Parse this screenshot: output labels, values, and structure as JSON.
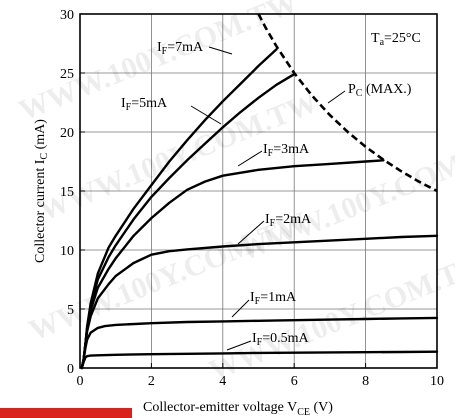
{
  "watermark": "WWW.100Y.COM.TW",
  "chart_data": {
    "type": "line",
    "xlabel": "Collector-emitter voltage V",
    "xlabel_sub": "CE",
    "xlabel_unit": " (V)",
    "ylabel": "Collector current I",
    "ylabel_sub": "C",
    "ylabel_unit": " (mA)",
    "xlim": [
      0,
      10
    ],
    "ylim": [
      0,
      30
    ],
    "xticks": [
      0,
      2,
      4,
      6,
      8,
      10
    ],
    "yticks": [
      0,
      5,
      10,
      15,
      20,
      25,
      30
    ],
    "grid": true,
    "condition": {
      "main": "T",
      "sub": "a",
      "rest": "=25°C"
    },
    "series": [
      {
        "name": "IF=7mA",
        "label_main": "I",
        "label_sub": "F",
        "label_rest": "=7mA",
        "x": [
          0.05,
          0.1,
          0.15,
          0.2,
          0.3,
          0.5,
          0.8,
          1.0,
          1.5,
          2.0,
          2.5,
          3.0,
          3.5,
          4.0,
          4.5,
          5.0,
          5.5
        ],
        "y": [
          0,
          0.7,
          2,
          3.5,
          5.5,
          8,
          10.2,
          11.2,
          13.5,
          15.5,
          17.5,
          19.3,
          21,
          22.6,
          24.1,
          25.6,
          27
        ]
      },
      {
        "name": "IF=5mA",
        "label_main": "I",
        "label_sub": "F",
        "label_rest": "=5mA",
        "x": [
          0.05,
          0.1,
          0.15,
          0.2,
          0.3,
          0.5,
          0.8,
          1.0,
          1.5,
          2.0,
          2.5,
          3.0,
          3.5,
          4.0,
          4.5,
          5.0,
          5.5,
          6.0
        ],
        "y": [
          0,
          0.7,
          2,
          3.4,
          5.2,
          7.5,
          9.4,
          10.4,
          12.6,
          14.5,
          16.1,
          17.6,
          19,
          20.4,
          21.7,
          22.9,
          24,
          24.9
        ]
      },
      {
        "name": "IF=3mA",
        "label_main": "I",
        "label_sub": "F",
        "label_rest": "=3mA",
        "x": [
          0.05,
          0.1,
          0.15,
          0.2,
          0.3,
          0.5,
          0.8,
          1.0,
          1.5,
          2.0,
          2.5,
          3.0,
          3.5,
          4.0,
          5.0,
          6.0,
          7.0,
          8.0,
          8.5
        ],
        "y": [
          0,
          0.7,
          2,
          3.3,
          4.9,
          6.8,
          8.4,
          9.3,
          11.2,
          12.7,
          14,
          15.1,
          15.8,
          16.3,
          16.8,
          17.1,
          17.3,
          17.5,
          17.6
        ]
      },
      {
        "name": "IF=2mA",
        "label_main": "I",
        "label_sub": "F",
        "label_rest": "=2mA",
        "x": [
          0.05,
          0.1,
          0.15,
          0.2,
          0.3,
          0.5,
          0.8,
          1.0,
          1.5,
          2.0,
          2.5,
          3.0,
          4.0,
          5.0,
          6.0,
          7.0,
          8.0,
          9.0,
          10.0
        ],
        "y": [
          0,
          0.7,
          2,
          3.1,
          4.4,
          5.9,
          7.1,
          7.8,
          8.9,
          9.6,
          9.9,
          10.05,
          10.3,
          10.5,
          10.65,
          10.8,
          10.95,
          11.1,
          11.2
        ]
      },
      {
        "name": "IF=1mA",
        "label_main": "I",
        "label_sub": "F",
        "label_rest": "=1mA",
        "x": [
          0.05,
          0.1,
          0.15,
          0.2,
          0.3,
          0.5,
          0.7,
          1.0,
          2.0,
          3.0,
          4.0,
          5.0,
          6.0,
          7.0,
          8.0,
          9.0,
          10.0
        ],
        "y": [
          0,
          0.7,
          1.7,
          2.4,
          3,
          3.4,
          3.55,
          3.65,
          3.8,
          3.9,
          3.95,
          4,
          4.05,
          4.1,
          4.15,
          4.2,
          4.25
        ]
      },
      {
        "name": "IF=0.5mA",
        "label_main": "I",
        "label_sub": "F",
        "label_rest": "=0.5mA",
        "x": [
          0.05,
          0.1,
          0.15,
          0.2,
          0.3,
          0.5,
          1.0,
          2.0,
          3.0,
          4.0,
          5.0,
          6.0,
          7.0,
          8.0,
          9.0,
          10.0
        ],
        "y": [
          0,
          0.5,
          0.9,
          1.0,
          1.05,
          1.08,
          1.12,
          1.17,
          1.2,
          1.24,
          1.28,
          1.3,
          1.32,
          1.34,
          1.36,
          1.38
        ]
      }
    ],
    "limit_curve": {
      "name": "PC (MAX.)",
      "label_main": "P",
      "label_sub": "C",
      "label_rest": " (MAX.)",
      "x": [
        5.0,
        5.2,
        5.5,
        6.0,
        6.5,
        7.0,
        7.5,
        8.0,
        8.5,
        9.0,
        9.5,
        10.0
      ],
      "y": [
        30,
        28.85,
        27.27,
        25,
        23.08,
        21.43,
        20,
        18.75,
        17.65,
        16.67,
        15.79,
        15
      ]
    }
  }
}
